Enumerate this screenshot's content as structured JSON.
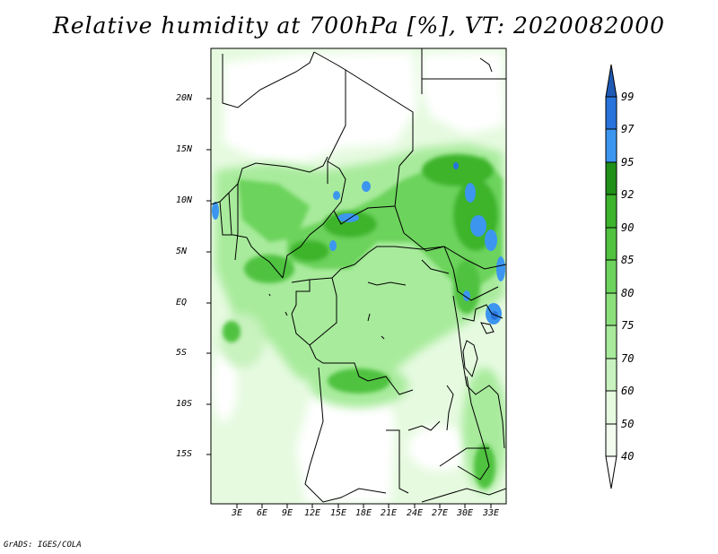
{
  "title": "Relative humidity at 700hPa [%], VT: 2020082000",
  "credit": "GrADS: IGES/COLA",
  "map": {
    "lat_labels": [
      "20N",
      "15N",
      "10N",
      "5N",
      "EQ",
      "5S",
      "10S",
      "15S"
    ],
    "lon_labels": [
      "3E",
      "6E",
      "9E",
      "12E",
      "15E",
      "18E",
      "21E",
      "24E",
      "27E",
      "30E",
      "33E"
    ]
  },
  "colorbar": {
    "labels": [
      "99",
      "97",
      "95",
      "92",
      "90",
      "85",
      "80",
      "75",
      "70",
      "60",
      "50",
      "40"
    ],
    "colors": {
      "c40": "#ffffff",
      "c50": "#e6fae0",
      "c60": "#c8f2be",
      "c70": "#a8eb9c",
      "c75": "#8ce07c",
      "c80": "#6cd35c",
      "c85": "#50c240",
      "c90": "#3cb42c",
      "c92": "#209018",
      "c95": "#3c96f0",
      "c97": "#2873dc",
      "c99": "#1e5ab4"
    }
  }
}
